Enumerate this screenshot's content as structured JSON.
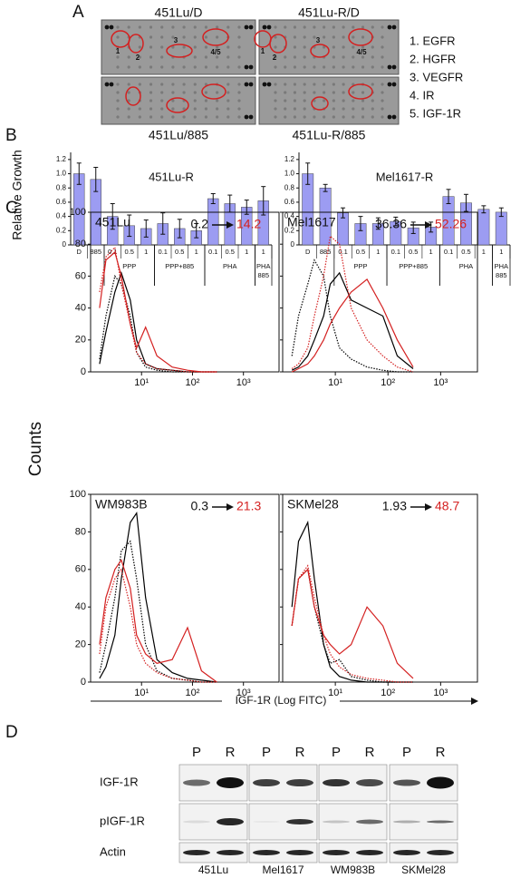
{
  "panel_labels": [
    "A",
    "B",
    "C",
    "D"
  ],
  "panel_a": {
    "blots": [
      {
        "title": "451Lu/D"
      },
      {
        "title": "451Lu-R/D"
      },
      {
        "title": "451Lu/885"
      },
      {
        "title": "451Lu-R/885"
      }
    ],
    "spot_labels": [
      [
        "1",
        "2",
        "3",
        "4/5"
      ],
      [
        "1",
        "2",
        "3",
        "4/5"
      ]
    ],
    "legend": [
      "1. EGFR",
      "2. HGFR",
      "3. VEGFR",
      "4. IR",
      "5. IGF-1R"
    ]
  },
  "chart_data": [
    {
      "type": "bar",
      "title": "451Lu-R",
      "ylabel": "Relative Growth",
      "categories": [
        "D",
        "885",
        "0.1",
        "0.5",
        "1",
        "0.1",
        "0.5",
        "1",
        "0.1",
        "0.5",
        "1",
        "1"
      ],
      "groups": [
        null,
        null,
        "PPP",
        null,
        null,
        "PPP+885",
        null,
        null,
        "PHA",
        null,
        null,
        "PHA 885"
      ],
      "values": [
        1.0,
        0.92,
        0.4,
        0.27,
        0.23,
        0.3,
        0.23,
        0.2,
        0.65,
        0.58,
        0.53,
        0.62
      ],
      "errors": [
        0.15,
        0.17,
        0.18,
        0.15,
        0.12,
        0.15,
        0.13,
        0.1,
        0.07,
        0.12,
        0.1,
        0.2
      ],
      "color": "#9c9cf2",
      "ylim": [
        0,
        1.3
      ],
      "yticks": [
        0,
        0.2,
        0.4,
        0.6,
        0.8,
        {
          "value": 1,
          "label": "1.0"
        },
        1.2
      ]
    },
    {
      "type": "bar",
      "title": "Mel1617-R",
      "categories": [
        "D",
        "885",
        "0.1",
        "0.5",
        "1",
        "0.1",
        "0.5",
        "1",
        "0.1",
        "0.5",
        "1",
        "1"
      ],
      "groups": [
        null,
        null,
        "PPP",
        null,
        null,
        "PPP+885",
        null,
        null,
        "PHA",
        null,
        null,
        "PHA 885"
      ],
      "values": [
        1.0,
        0.8,
        0.45,
        0.3,
        0.3,
        0.33,
        0.24,
        0.25,
        0.68,
        0.59,
        0.5,
        0.46
      ],
      "errors": [
        0.15,
        0.05,
        0.07,
        0.1,
        0.08,
        0.06,
        0.08,
        0.07,
        0.1,
        0.12,
        0.05,
        0.06
      ],
      "color": "#9c9cf2",
      "ylim": [
        0,
        1.3
      ],
      "yticks": [
        0,
        0.2,
        0.4,
        0.6,
        0.8,
        {
          "value": 1,
          "label": "1.0"
        },
        1.2
      ]
    },
    {
      "type": "line",
      "title": "451Lu",
      "annotation": {
        "before": 0.2,
        "after": 14.2,
        "after_color": "#d42020"
      },
      "log_x": true,
      "show_ytick_labels": true,
      "x": [
        1.5,
        2,
        3,
        4,
        6,
        8,
        12,
        20,
        40,
        80,
        150,
        300
      ],
      "series": [
        {
          "color": "#000000",
          "style": "solid",
          "values": [
            5,
            25,
            50,
            62,
            45,
            20,
            5,
            2,
            1,
            0,
            0,
            0
          ]
        },
        {
          "color": "#000000",
          "style": "dotted",
          "values": [
            8,
            35,
            60,
            55,
            35,
            12,
            3,
            1,
            0,
            0,
            0,
            0
          ]
        },
        {
          "color": "#d42020",
          "style": "solid",
          "values": [
            40,
            70,
            75,
            60,
            30,
            15,
            28,
            10,
            3,
            1,
            0,
            0
          ]
        },
        {
          "color": "#d42020",
          "style": "dotted",
          "values": [
            50,
            72,
            78,
            55,
            30,
            12,
            5,
            2,
            1,
            0,
            0,
            0
          ]
        }
      ],
      "xlim": [
        1,
        5000
      ],
      "xticks": [
        {
          "value": 10,
          "label": "10¹"
        },
        {
          "value": 100,
          "label": "10²"
        },
        {
          "value": 1000,
          "label": "10³"
        }
      ],
      "ylim": [
        0,
        100
      ],
      "yticks": [
        0,
        20,
        40,
        60,
        80,
        100
      ]
    },
    {
      "type": "line",
      "title": "Mel1617",
      "annotation": {
        "before": 36.36,
        "after": 52.26,
        "after_color": "#d42020"
      },
      "log_x": true,
      "show_ytick_labels": false,
      "x": [
        1.5,
        2,
        3,
        4,
        6,
        8,
        12,
        20,
        40,
        80,
        150,
        300
      ],
      "series": [
        {
          "color": "#000000",
          "style": "solid",
          "values": [
            1,
            3,
            10,
            20,
            35,
            55,
            62,
            45,
            40,
            35,
            10,
            2
          ]
        },
        {
          "color": "#000000",
          "style": "dotted",
          "values": [
            10,
            35,
            55,
            70,
            60,
            35,
            15,
            8,
            3,
            1,
            0,
            0
          ]
        },
        {
          "color": "#d42020",
          "style": "solid",
          "values": [
            0,
            2,
            5,
            10,
            20,
            30,
            40,
            50,
            58,
            40,
            20,
            3
          ]
        },
        {
          "color": "#d42020",
          "style": "dotted",
          "values": [
            2,
            5,
            15,
            35,
            60,
            85,
            80,
            40,
            20,
            10,
            3,
            0
          ]
        }
      ],
      "xlim": [
        1,
        5000
      ],
      "xticks": [
        {
          "value": 10,
          "label": "10¹"
        },
        {
          "value": 100,
          "label": "10²"
        },
        {
          "value": 1000,
          "label": "10³"
        }
      ],
      "ylim": [
        0,
        100
      ],
      "yticks": [
        0,
        20,
        40,
        60,
        80,
        100
      ]
    },
    {
      "type": "line",
      "title": "WM983B",
      "annotation": {
        "before": 0.3,
        "after": 21.3,
        "after_color": "#d42020"
      },
      "log_x": true,
      "show_ytick_labels": true,
      "x": [
        1.5,
        2,
        3,
        4,
        6,
        8,
        12,
        20,
        40,
        80,
        150,
        300
      ],
      "series": [
        {
          "color": "#000000",
          "style": "solid",
          "values": [
            2,
            8,
            25,
            55,
            85,
            90,
            45,
            12,
            5,
            2,
            1,
            0
          ]
        },
        {
          "color": "#000000",
          "style": "dotted",
          "values": [
            5,
            20,
            45,
            70,
            75,
            55,
            20,
            6,
            2,
            1,
            0,
            0
          ]
        },
        {
          "color": "#d42020",
          "style": "solid",
          "values": [
            20,
            45,
            60,
            65,
            50,
            25,
            15,
            10,
            12,
            29,
            6,
            0
          ]
        },
        {
          "color": "#d42020",
          "style": "dotted",
          "values": [
            15,
            40,
            55,
            60,
            40,
            20,
            10,
            5,
            2,
            1,
            0,
            0
          ]
        }
      ],
      "xlim": [
        1,
        5000
      ],
      "xticks": [
        {
          "value": 10,
          "label": "10¹"
        },
        {
          "value": 100,
          "label": "10²"
        },
        {
          "value": 1000,
          "label": "10³"
        }
      ],
      "ylim": [
        0,
        100
      ],
      "yticks": [
        0,
        20,
        40,
        60,
        80,
        100
      ]
    },
    {
      "type": "line",
      "title": "SKMel28",
      "annotation": {
        "before": 1.93,
        "after": 48.7,
        "after_color": "#d42020"
      },
      "log_x": true,
      "show_ytick_labels": false,
      "x": [
        1.5,
        2,
        3,
        4,
        6,
        8,
        12,
        20,
        40,
        80,
        150,
        300
      ],
      "series": [
        {
          "color": "#000000",
          "style": "solid",
          "values": [
            40,
            75,
            85,
            55,
            20,
            8,
            3,
            1,
            0,
            0,
            0,
            0
          ]
        },
        {
          "color": "#000000",
          "style": "dotted",
          "values": [
            30,
            55,
            60,
            40,
            20,
            10,
            12,
            3,
            1,
            0,
            0,
            0
          ]
        },
        {
          "color": "#d42020",
          "style": "solid",
          "values": [
            30,
            55,
            60,
            40,
            25,
            20,
            15,
            20,
            40,
            30,
            10,
            2
          ]
        },
        {
          "color": "#d42020",
          "style": "dotted",
          "values": [
            30,
            55,
            62,
            45,
            25,
            15,
            8,
            4,
            2,
            1,
            0,
            0
          ]
        }
      ],
      "xlim": [
        1,
        5000
      ],
      "xticks": [
        {
          "value": 10,
          "label": "10¹"
        },
        {
          "value": 100,
          "label": "10²"
        },
        {
          "value": 1000,
          "label": "10³"
        }
      ],
      "ylim": [
        0,
        100
      ],
      "yticks": [
        0,
        20,
        40,
        60,
        80,
        100
      ]
    }
  ],
  "panel_c": {
    "ylabel": "Counts",
    "xlabel": "IGF-1R (Log FITC)"
  },
  "panel_d": {
    "lane_labels": [
      "P",
      "R",
      "P",
      "R",
      "P",
      "R",
      "P",
      "R"
    ],
    "row_labels": [
      "IGF-1R",
      "pIGF-1R",
      "Actin"
    ],
    "cell_lines": [
      "451Lu",
      "Mel1617",
      "WM983B",
      "SKMel28"
    ]
  }
}
